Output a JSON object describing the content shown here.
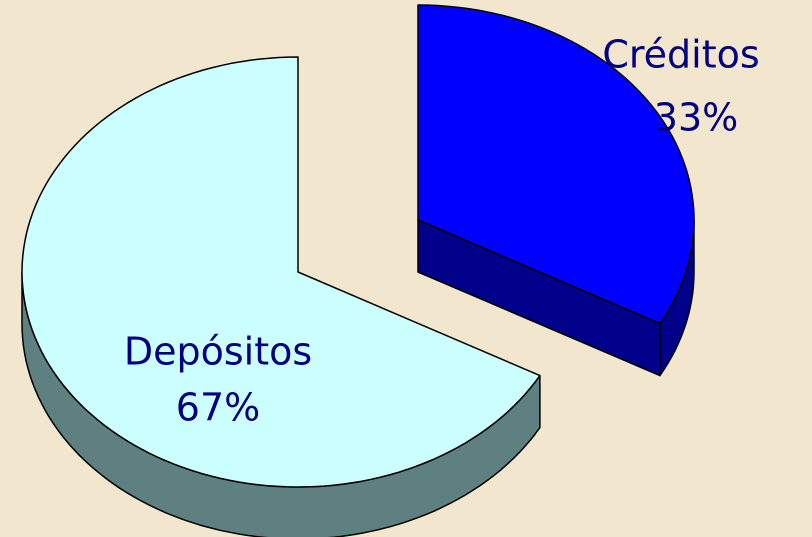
{
  "chart_data": {
    "type": "pie",
    "categories": [
      "Créditos",
      "Depósitos"
    ],
    "values": [
      33,
      67
    ],
    "value_labels": [
      "33%",
      "67%"
    ],
    "colors": [
      "#0000ff",
      "#ccffff"
    ],
    "side_colors": [
      "#00008b",
      "#5f8080"
    ],
    "exploded": [
      true,
      false
    ]
  }
}
